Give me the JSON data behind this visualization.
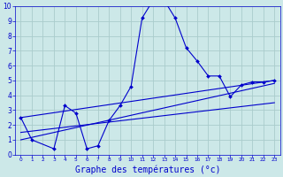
{
  "xlabel": "Graphe des températures (°c)",
  "bg_color": "#cce8e8",
  "grid_color": "#aacccc",
  "line_color": "#0000cc",
  "xlim": [
    -0.5,
    23.5
  ],
  "ylim": [
    0,
    10
  ],
  "xticks": [
    0,
    1,
    2,
    3,
    4,
    5,
    6,
    7,
    8,
    9,
    10,
    11,
    12,
    13,
    14,
    15,
    16,
    17,
    18,
    19,
    20,
    21,
    22,
    23
  ],
  "yticks": [
    0,
    1,
    2,
    3,
    4,
    5,
    6,
    7,
    8,
    9,
    10
  ],
  "series": [
    {
      "x": [
        0,
        1,
        3,
        4,
        5,
        6,
        7,
        8,
        9,
        10,
        11,
        12,
        13,
        14,
        15,
        16,
        17,
        18,
        19,
        20,
        21,
        22,
        23
      ],
      "y": [
        2.5,
        1.0,
        0.4,
        3.3,
        2.8,
        0.4,
        0.6,
        2.3,
        3.3,
        4.6,
        9.2,
        10.4,
        10.4,
        9.2,
        7.2,
        6.3,
        5.3,
        5.3,
        3.9,
        4.7,
        4.9,
        4.9,
        5.0
      ],
      "has_markers": true
    },
    {
      "x": [
        0,
        23
      ],
      "y": [
        2.5,
        5.0
      ],
      "has_markers": false
    },
    {
      "x": [
        0,
        23
      ],
      "y": [
        1.5,
        3.5
      ],
      "has_markers": false
    },
    {
      "x": [
        0,
        23
      ],
      "y": [
        1.0,
        4.8
      ],
      "has_markers": false
    }
  ],
  "xlabel_fontsize": 7,
  "tick_fontsize_x": 4.2,
  "tick_fontsize_y": 5.5,
  "linewidth": 0.8,
  "markersize": 2.0
}
